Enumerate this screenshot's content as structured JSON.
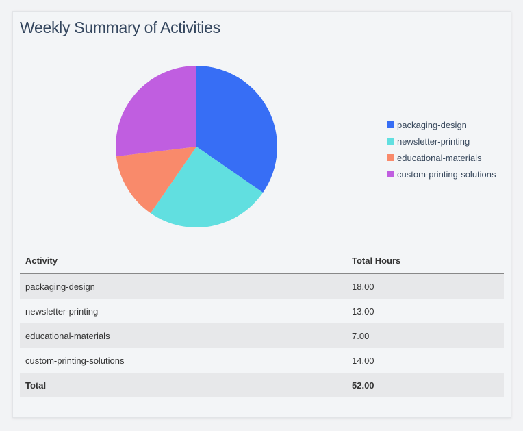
{
  "title": "Weekly Summary of Activities",
  "chart_data": {
    "type": "pie",
    "title": "",
    "categories": [
      "packaging-design",
      "newsletter-printing",
      "educational-materials",
      "custom-printing-solutions"
    ],
    "values": [
      18,
      13,
      7,
      14
    ],
    "colors": [
      "#376ef5",
      "#61dfe0",
      "#f98a6b",
      "#c05ee0"
    ],
    "legend_position": "right",
    "start": "top",
    "direction": "clockwise"
  },
  "table": {
    "headers": [
      "Activity",
      "Total Hours"
    ],
    "rows": [
      [
        "packaging-design",
        "18.00"
      ],
      [
        "newsletter-printing",
        "13.00"
      ],
      [
        "educational-materials",
        "7.00"
      ],
      [
        "custom-printing-solutions",
        "14.00"
      ]
    ],
    "total": [
      "Total",
      "52.00"
    ]
  }
}
